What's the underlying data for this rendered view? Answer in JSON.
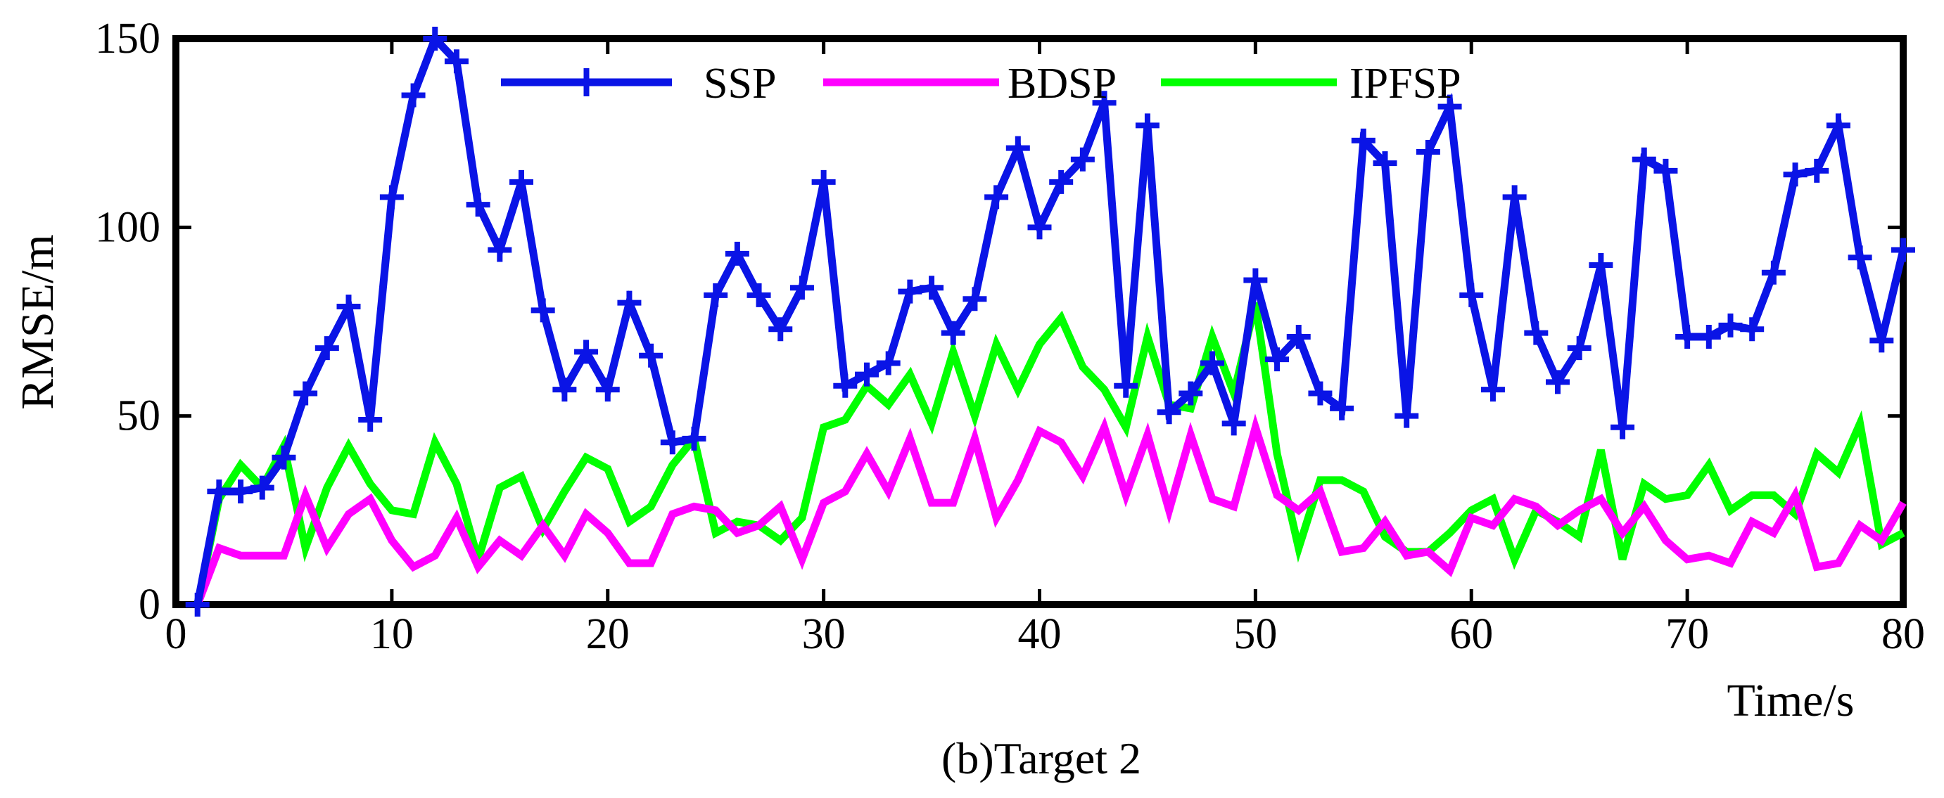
{
  "chart_data": {
    "type": "line",
    "title": "",
    "caption": "(b)Target 2",
    "xlabel": "Time/s",
    "ylabel": "RMSE/m",
    "xlim": [
      0,
      80
    ],
    "ylim": [
      0,
      150
    ],
    "x_ticks": [
      0,
      10,
      20,
      30,
      40,
      50,
      60,
      70,
      80
    ],
    "y_ticks": [
      0,
      50,
      100,
      150
    ],
    "grid": false,
    "legend_position": "top",
    "x": [
      1,
      2,
      3,
      4,
      5,
      6,
      7,
      8,
      9,
      10,
      11,
      12,
      13,
      14,
      15,
      16,
      17,
      18,
      19,
      20,
      21,
      22,
      23,
      24,
      25,
      26,
      27,
      28,
      29,
      30,
      31,
      32,
      33,
      34,
      35,
      36,
      37,
      38,
      39,
      40,
      41,
      42,
      43,
      44,
      45,
      46,
      47,
      48,
      49,
      50,
      51,
      52,
      53,
      54,
      55,
      56,
      57,
      58,
      59,
      60,
      61,
      62,
      63,
      64,
      65,
      66,
      67,
      68,
      69,
      70,
      71,
      72,
      73,
      74,
      75,
      76,
      77,
      78,
      79,
      80
    ],
    "series": [
      {
        "name": "SSP",
        "color": "#0a14e6",
        "marker": "plus",
        "values": [
          0,
          30,
          30,
          31,
          39,
          56,
          68,
          79,
          49,
          108,
          135,
          150,
          144,
          106,
          94,
          112,
          78,
          57,
          67,
          57,
          80,
          66,
          43,
          44,
          82,
          93,
          82,
          73,
          84,
          112,
          58,
          61,
          64,
          83,
          84,
          72,
          81,
          108,
          121,
          100,
          112,
          118,
          133,
          58,
          127,
          51,
          56,
          64,
          48,
          86,
          65,
          71,
          56,
          52,
          123,
          117,
          50,
          120,
          132,
          82,
          57,
          108,
          72,
          59,
          68,
          90,
          47,
          118,
          115,
          71,
          71,
          74,
          73,
          88,
          114,
          115,
          127,
          92,
          70,
          94
        ]
      },
      {
        "name": "BDSP",
        "color": "#ff00ff",
        "marker": "none",
        "values": [
          0,
          15,
          13,
          13,
          13,
          29,
          15,
          24,
          28,
          17,
          10,
          13,
          23,
          10,
          17,
          13,
          21,
          13,
          24,
          19,
          11,
          11,
          24,
          26,
          25,
          19,
          21,
          26,
          12,
          27,
          30,
          40,
          30,
          44,
          27,
          27,
          44,
          23,
          33,
          46,
          43,
          34,
          47,
          29,
          45,
          25,
          45,
          28,
          26,
          47,
          29,
          25,
          30,
          14,
          15,
          22,
          13,
          14,
          9,
          23,
          21,
          28,
          26,
          21,
          25,
          28,
          19,
          26,
          17,
          12,
          13,
          11,
          22,
          19,
          29,
          10,
          11,
          21,
          17,
          27
        ]
      },
      {
        "name": "IPFSP",
        "color": "#00ff00",
        "marker": "none",
        "values": [
          0,
          28,
          37,
          31,
          42,
          15,
          31,
          42,
          32,
          25,
          24,
          43,
          32,
          12,
          31,
          34,
          20,
          30,
          39,
          36,
          22,
          26,
          37,
          44,
          19,
          22,
          21,
          17,
          23,
          47,
          49,
          58,
          53,
          61,
          48,
          67,
          50,
          69,
          57,
          69,
          76,
          63,
          57,
          47,
          71,
          53,
          52,
          71,
          56,
          80,
          40,
          15,
          33,
          33,
          30,
          18,
          14,
          14,
          19,
          25,
          28,
          12,
          25,
          22,
          18,
          41,
          12,
          32,
          28,
          29,
          37,
          25,
          29,
          29,
          24,
          40,
          35,
          48,
          16,
          19
        ]
      }
    ]
  }
}
